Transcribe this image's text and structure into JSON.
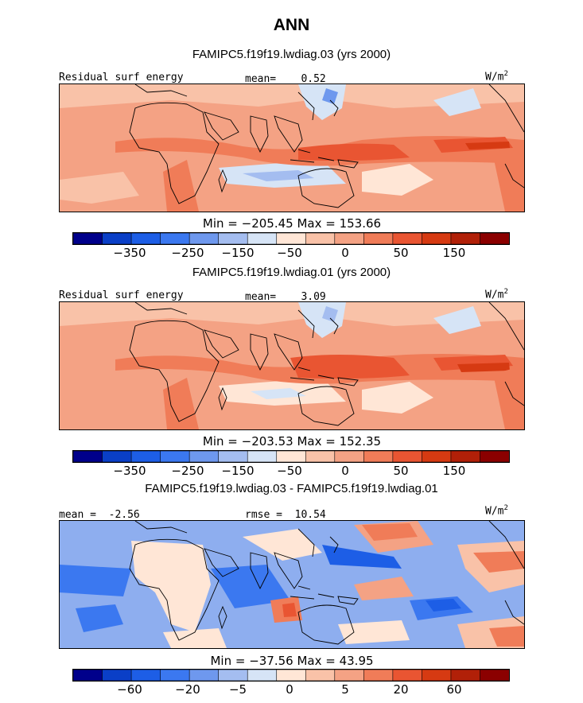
{
  "title": "ANN",
  "colors": {
    "palette": [
      "#00008b",
      "#0a3fc7",
      "#1d5ee6",
      "#3b78f0",
      "#6e98ee",
      "#a4bdf0",
      "#d6e4f6",
      "#ffe6d6",
      "#f9c2a8",
      "#f4a284",
      "#f07c58",
      "#e95532",
      "#d63a12",
      "#b12008",
      "#8b0000"
    ],
    "land_outline": "#000000"
  },
  "panels": [
    {
      "title": "FAMIPC5.f19f19.lwdiag.03 (yrs 2000)",
      "left_label": "Residual surf energy",
      "center_label": "mean=    0.52",
      "units": "W/m",
      "units_sup": "2",
      "stats": "Min = −205.45 Max = 153.66",
      "colorbar_labels": [
        "−350",
        "−250",
        "−150",
        "−50",
        "0",
        "50",
        "150"
      ]
    },
    {
      "title": "FAMIPC5.f19f19.lwdiag.01 (yrs 2000)",
      "left_label": "Residual surf energy",
      "center_label": "mean=    3.09",
      "units": "W/m",
      "units_sup": "2",
      "stats": "Min = −203.53 Max = 152.35",
      "colorbar_labels": [
        "−350",
        "−250",
        "−150",
        "−50",
        "0",
        "50",
        "150"
      ]
    },
    {
      "title": "FAMIPC5.f19f19.lwdiag.03 - FAMIPC5.f19f19.lwdiag.01",
      "left_label": "mean =  -2.56",
      "center_label": "rmse =  10.54",
      "units": "W/m",
      "units_sup": "2",
      "stats": "Min = −37.56 Max =  43.95",
      "colorbar_labels": [
        "−60",
        "−20",
        "−5",
        "0",
        "5",
        "20",
        "60"
      ]
    }
  ],
  "chart_data": [
    {
      "type": "heatmap",
      "title": "FAMIPC5.f19f19.lwdiag.03 (yrs 2000)",
      "variable": "Residual surf energy",
      "units": "W/m2",
      "mean": 0.52,
      "min": -205.45,
      "max": 153.66,
      "colorbar_ticks": [
        -350,
        -250,
        -150,
        -50,
        0,
        50,
        150
      ]
    },
    {
      "type": "heatmap",
      "title": "FAMIPC5.f19f19.lwdiag.01 (yrs 2000)",
      "variable": "Residual surf energy",
      "units": "W/m2",
      "mean": 3.09,
      "min": -203.53,
      "max": 152.35,
      "colorbar_ticks": [
        -350,
        -250,
        -150,
        -50,
        0,
        50,
        150
      ]
    },
    {
      "type": "heatmap",
      "title": "FAMIPC5.f19f19.lwdiag.03 - FAMIPC5.f19f19.lwdiag.01",
      "units": "W/m2",
      "mean": -2.56,
      "rmse": 10.54,
      "min": -37.56,
      "max": 43.95,
      "colorbar_ticks": [
        -60,
        -20,
        -5,
        0,
        5,
        20,
        60
      ]
    }
  ]
}
